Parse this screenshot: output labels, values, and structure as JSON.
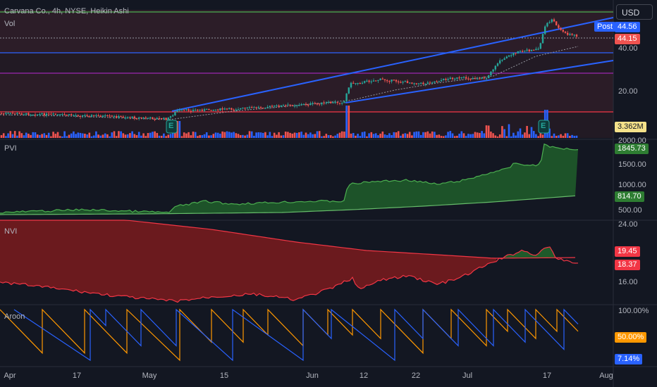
{
  "header": {
    "symbol_line": "Carvana Co., 4h, NYSE, Heikin Ashi",
    "vol_label": "Vol",
    "currency_button": "USD",
    "post_label": "Post"
  },
  "colors": {
    "background": "#131722",
    "up": "#26a69a",
    "down": "#ef5350",
    "channel": "#2962ff",
    "pvi": "#4caf50",
    "nvi": "#f23645",
    "aroon_up": "#ff9800",
    "aroon_down": "#2962ff"
  },
  "chart_data": [
    {
      "panel": "price",
      "type": "candlestick",
      "subtitle": "Heikin Ashi",
      "y_ticks": [
        "40.00",
        "20.00"
      ],
      "price_tags": {
        "post": "44.56",
        "last": "44.15",
        "volume": "3.362M"
      },
      "earnings_markers": [
        "E",
        "E"
      ]
    },
    {
      "panel": "pvi",
      "type": "area",
      "title": "PVI",
      "y_ticks": [
        "2000.00",
        "1500.00",
        "1000.00",
        "500.00"
      ],
      "last_values": {
        "pvi": "1845.73",
        "signal": "814.70"
      }
    },
    {
      "panel": "nvi",
      "type": "area",
      "title": "NVI",
      "y_ticks": [
        "24.00",
        "16.00"
      ],
      "last_values": {
        "nvi": "19.45",
        "signal": "18.37"
      }
    },
    {
      "panel": "aroon",
      "type": "line",
      "title": "Aroon",
      "y_ticks": [
        "100.00%"
      ],
      "last_values": {
        "up": "50.00%",
        "down": "7.14%"
      }
    }
  ],
  "x_axis": {
    "ticks": [
      "Apr",
      "17",
      "May",
      "15",
      "Jun",
      "12",
      "22",
      "Jul",
      "17",
      "Aug"
    ]
  }
}
